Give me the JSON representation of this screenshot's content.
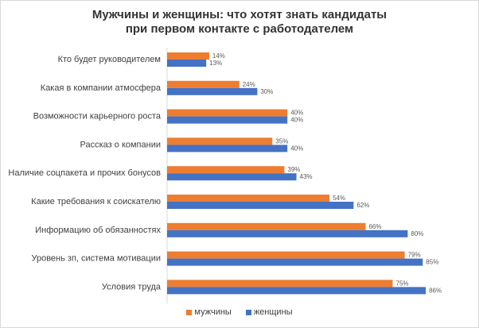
{
  "chart_data": {
    "type": "bar",
    "orientation": "horizontal",
    "title_line1": "Мужчины и женщины: что хотят знать кандидаты",
    "title_line2": "при первом контакте с работодателем",
    "categories": [
      "Кто будет руководителем",
      "Какая в компании атмосфера",
      "Возможности карьерного роста",
      "Рассказ о компании",
      "Наличие соцпакета и прочих бонусов",
      "Какие требования к соискателю",
      "Информацию об обязанностях",
      "Уровень зп, система мотивации",
      "Условия труда"
    ],
    "series": [
      {
        "name": "мужчины",
        "color": "#ed7d31",
        "values": [
          14,
          24,
          40,
          35,
          39,
          54,
          66,
          79,
          75
        ],
        "labels": [
          "14%",
          "24%",
          "40%",
          "35%",
          "39%",
          "54%",
          "66%",
          "79%",
          "75%"
        ]
      },
      {
        "name": "женщины",
        "color": "#4472c4",
        "values": [
          13,
          30,
          40,
          40,
          43,
          62,
          80,
          85,
          86
        ],
        "labels": [
          "13%",
          "30%",
          "40%",
          "40%",
          "43%",
          "62%",
          "80%",
          "85%",
          "86%"
        ]
      }
    ],
    "xlim": [
      0,
      100
    ],
    "grid": false,
    "legend_position": "bottom"
  }
}
